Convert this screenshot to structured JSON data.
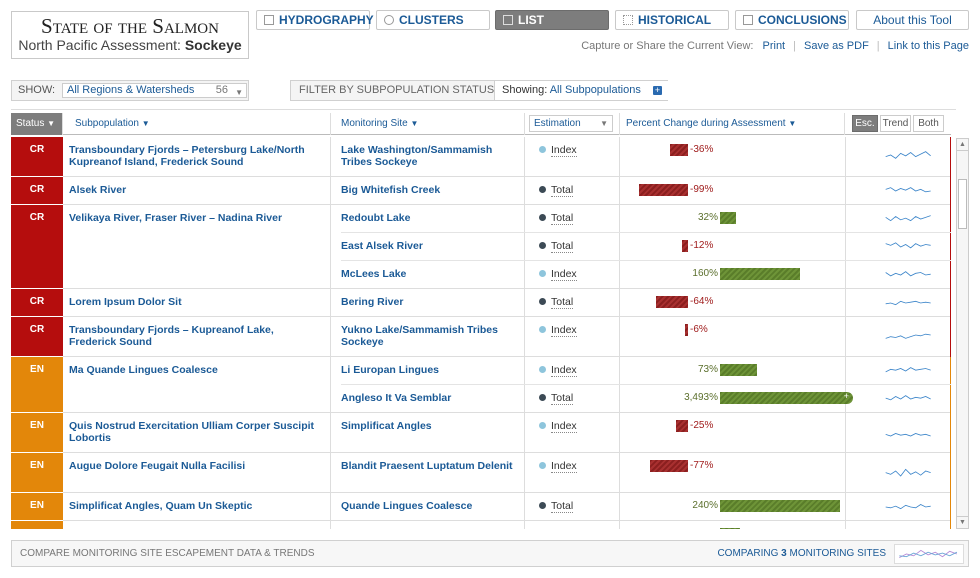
{
  "brand": {
    "title": "State of the Salmon",
    "subtitle_prefix": "North Pacific Assessment: ",
    "subtitle_species": "Sockeye"
  },
  "nav": {
    "hydrography": "HYDROGRAPHY",
    "clusters": "CLUSTERS",
    "list": "LIST",
    "historical": "HISTORICAL",
    "conclusions": "CONCLUSIONS",
    "about": "About this Tool"
  },
  "capture": {
    "label": "Capture or Share the Current View:",
    "print": "Print",
    "pdf": "Save as PDF",
    "link": "Link to this Page"
  },
  "show": {
    "label": "SHOW:",
    "value": "All Regions & Watersheds",
    "count": "56"
  },
  "filter": {
    "label": "FILTER BY SUBPOPULATION STATUS",
    "showing_label": "Showing:",
    "showing_value": "All Subpopulations",
    "plus": "+"
  },
  "columns": {
    "status": "Status",
    "subpopulation": "Subpopulation",
    "site": "Monitoring Site",
    "estimation": "Estimation",
    "percent": "Percent Change during Assessment",
    "esc": "Esc.",
    "trend": "Trend",
    "both": "Both",
    "sort_arrow": "▼",
    "dropdown_arrow": "▼"
  },
  "status_colors": {
    "CR": "#b50d0d",
    "EN": "#e3870a"
  },
  "groups": [
    {
      "status": "CR",
      "subpopulation": "Transboundary Fjords – Petersburg Lake/North Kupreanof Island, Frederick Sound",
      "sites": [
        {
          "name": "Lake Washington/Sammamish Tribes Sockeye",
          "estimation": "Index",
          "pct": "-36%",
          "value": -36,
          "spark": "a"
        }
      ]
    },
    {
      "status": "CR",
      "subpopulation": "Alsek River",
      "sites": [
        {
          "name": "Big Whitefish Creek",
          "estimation": "Total",
          "pct": "-99%",
          "value": -99,
          "spark": "b"
        }
      ]
    },
    {
      "status": "CR",
      "subpopulation": "Velikaya River, Fraser River – Nadina River",
      "sites": [
        {
          "name": "Redoubt Lake",
          "estimation": "Total",
          "pct": "32%",
          "value": 32,
          "spark": "c"
        },
        {
          "name": "East Alsek River",
          "estimation": "Total",
          "pct": "-12%",
          "value": -12,
          "spark": "d"
        },
        {
          "name": "McLees Lake",
          "estimation": "Index",
          "pct": "160%",
          "value": 160,
          "spark": "e"
        }
      ]
    },
    {
      "status": "CR",
      "subpopulation": "Lorem Ipsum Dolor Sit",
      "sites": [
        {
          "name": "Bering River",
          "estimation": "Total",
          "pct": "-64%",
          "value": -64,
          "spark": "f"
        }
      ]
    },
    {
      "status": "CR",
      "subpopulation": "Transboundary Fjords – Kupreanof Lake, Frederick Sound",
      "sites": [
        {
          "name": "Yukno Lake/Sammamish Tribes Sockeye",
          "estimation": "Index",
          "pct": "-6%",
          "value": -6,
          "spark": "g"
        }
      ]
    },
    {
      "status": "EN",
      "subpopulation": "Ma Quande Lingues Coalesce",
      "sites": [
        {
          "name": "Li Europan Lingues",
          "estimation": "Index",
          "pct": "73%",
          "value": 73,
          "spark": "h"
        },
        {
          "name": "Angleso It Va Semblar",
          "estimation": "Total",
          "pct": "3,493%",
          "value": 3493,
          "spark": "i"
        }
      ]
    },
    {
      "status": "EN",
      "subpopulation": "Quis Nostrud Exercitation Ulliam Corper Suscipit Lobortis",
      "sites": [
        {
          "name": "Simplificat Angles",
          "estimation": "Index",
          "pct": "-25%",
          "value": -25,
          "spark": "j"
        }
      ]
    },
    {
      "status": "EN",
      "subpopulation": " Augue Dolore Feugait Nulla Facilisi",
      "sites": [
        {
          "name": "Blandit Praesent Luptatum Delenit",
          "estimation": "Index",
          "pct": "-77%",
          "value": -77,
          "spark": "k"
        }
      ]
    },
    {
      "status": "EN",
      "subpopulation": "Simplificat Angles, Quam Un Skeptic",
      "sites": [
        {
          "name": "Quande Lingues Coalesce",
          "estimation": "Total",
          "pct": "240%",
          "value": 240,
          "spark": "l"
        }
      ]
    },
    {
      "status": "EN",
      "subpopulation": "",
      "sites": [
        {
          "name": "",
          "estimation": "",
          "pct": "",
          "value": 40,
          "spark": "m"
        }
      ]
    }
  ],
  "estimation_colors": {
    "Index": "#8ec5dc",
    "Total": "#3c4a55"
  },
  "footer": {
    "left": "COMPARE MONITORING SITE ESCAPEMENT DATA & TRENDS",
    "right_prefix": "COMPARING ",
    "count": "3",
    "right_suffix": " MONITORING SITES"
  }
}
